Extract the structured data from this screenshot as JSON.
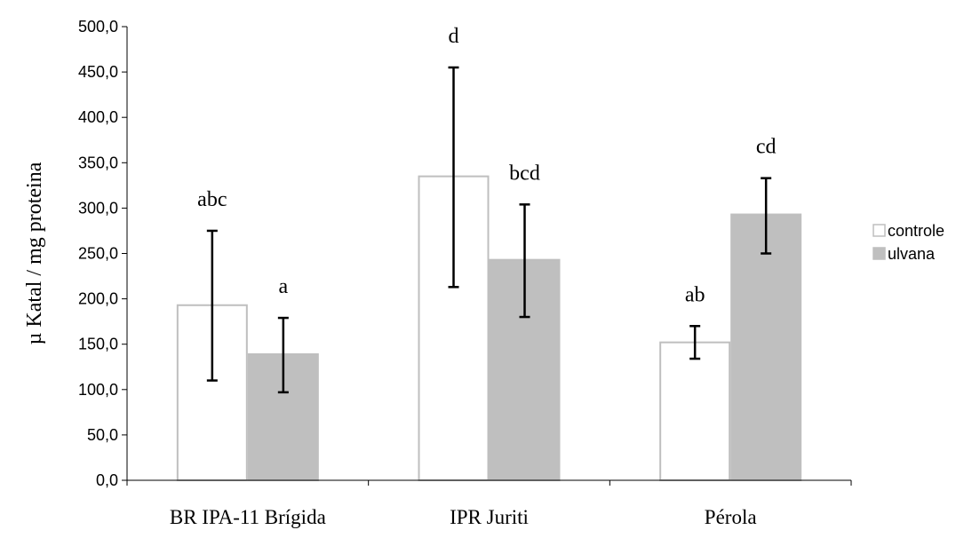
{
  "chart_data": {
    "type": "bar",
    "title": "",
    "xlabel": "",
    "ylabel": "µ Katal / mg proteina",
    "ylim": [
      0,
      500
    ],
    "yticks": [
      "0,0",
      "50,0",
      "100,0",
      "150,0",
      "200,0",
      "250,0",
      "300,0",
      "350,0",
      "400,0",
      "450,0",
      "500,0"
    ],
    "ytick_values": [
      0,
      50,
      100,
      150,
      200,
      250,
      300,
      350,
      400,
      450,
      500
    ],
    "categories": [
      "BR IPA-11 Brígida",
      "IPR Juriti",
      "Pérola"
    ],
    "series": [
      {
        "name": "controle",
        "color": "#ffffff",
        "edge_color": "#bfbfbf",
        "values": [
          193,
          335,
          152
        ],
        "error_low": [
          110,
          213,
          134
        ],
        "error_high": [
          275,
          455,
          170
        ],
        "labels": [
          "abc",
          "d",
          "ab"
        ]
      },
      {
        "name": "ulvana",
        "color": "#bfbfbf",
        "edge_color": "#bfbfbf",
        "values": [
          139,
          243,
          293
        ],
        "error_low": [
          97,
          180,
          250
        ],
        "error_high": [
          179,
          304,
          333
        ],
        "labels": [
          "a",
          "bcd",
          "cd"
        ]
      }
    ],
    "grid": false,
    "legend_position": "right"
  }
}
